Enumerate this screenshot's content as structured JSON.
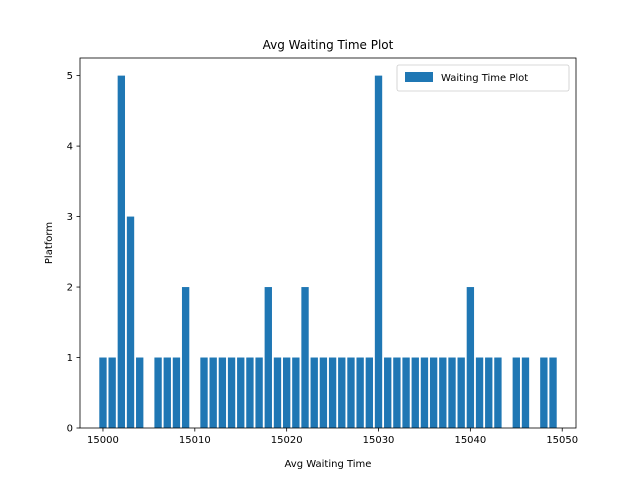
{
  "chart_data": {
    "type": "bar",
    "title": "Avg Waiting Time Plot",
    "xlabel": "Avg Waiting Time",
    "ylabel": "Platform",
    "xlim": [
      14997.5,
      15051.5
    ],
    "ylim": [
      0,
      5.25
    ],
    "xticks": [
      15000,
      15010,
      15020,
      15030,
      15040,
      15050
    ],
    "yticks": [
      0,
      1,
      2,
      3,
      4,
      5
    ],
    "grid": false,
    "legend": {
      "placement": "top-right"
    },
    "color": "#1f77b4",
    "series": [
      {
        "name": "Waiting Time Plot",
        "x": [
          15000,
          15001,
          15002,
          15003,
          15004,
          15006,
          15007,
          15008,
          15009,
          15011,
          15012,
          15013,
          15014,
          15015,
          15016,
          15017,
          15018,
          15019,
          15020,
          15021,
          15022,
          15023,
          15024,
          15025,
          15026,
          15027,
          15028,
          15029,
          15030,
          15031,
          15032,
          15033,
          15034,
          15035,
          15036,
          15037,
          15038,
          15039,
          15040,
          15041,
          15042,
          15043,
          15045,
          15046,
          15048,
          15049
        ],
        "values": [
          1,
          1,
          5,
          3,
          1,
          1,
          1,
          1,
          2,
          1,
          1,
          1,
          1,
          1,
          1,
          1,
          2,
          1,
          1,
          1,
          2,
          1,
          1,
          1,
          1,
          1,
          1,
          1,
          5,
          1,
          1,
          1,
          1,
          1,
          1,
          1,
          1,
          1,
          2,
          1,
          1,
          1,
          1,
          1,
          1,
          1
        ]
      }
    ]
  }
}
